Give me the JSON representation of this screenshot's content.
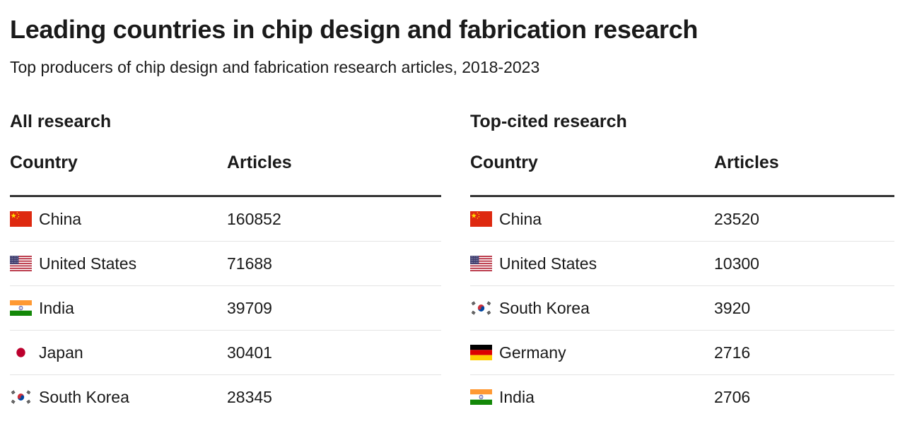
{
  "chart_data": {
    "type": "table",
    "title": "Leading countries in chip design and fabrication research",
    "subtitle": "Top producers of chip design and fabrication research articles, 2018-2023",
    "tables": [
      {
        "name": "All research",
        "columns": [
          "Country",
          "Articles"
        ],
        "rows": [
          {
            "country": "China",
            "articles": 160852,
            "flag": "cn-flag-icon"
          },
          {
            "country": "United States",
            "articles": 71688,
            "flag": "us-flag-icon"
          },
          {
            "country": "India",
            "articles": 39709,
            "flag": "in-flag-icon"
          },
          {
            "country": "Japan",
            "articles": 30401,
            "flag": "jp-flag-icon"
          },
          {
            "country": "South Korea",
            "articles": 28345,
            "flag": "kr-flag-icon"
          }
        ]
      },
      {
        "name": "Top-cited research",
        "columns": [
          "Country",
          "Articles"
        ],
        "rows": [
          {
            "country": "China",
            "articles": 23520,
            "flag": "cn-flag-icon"
          },
          {
            "country": "United States",
            "articles": 10300,
            "flag": "us-flag-icon"
          },
          {
            "country": "South Korea",
            "articles": 3920,
            "flag": "kr-flag-icon"
          },
          {
            "country": "Germany",
            "articles": 2716,
            "flag": "de-flag-icon"
          },
          {
            "country": "India",
            "articles": 2706,
            "flag": "in-flag-icon"
          }
        ]
      }
    ]
  },
  "colors": {
    "text": "#1a1a1a",
    "header_rule": "#333333",
    "row_rule": "#e4e4e4",
    "china_red": "#de2910",
    "china_yellow": "#ffde00",
    "us_red": "#b22234",
    "us_blue": "#3c3b6e",
    "india_saffron": "#ff9933",
    "india_green": "#138808",
    "india_chakra": "#000080",
    "japan_red": "#bc002d",
    "korea_red": "#cd2e3a",
    "korea_blue": "#0047a0",
    "germany_black": "#000000",
    "germany_red": "#dd0000",
    "germany_gold": "#ffce00"
  }
}
